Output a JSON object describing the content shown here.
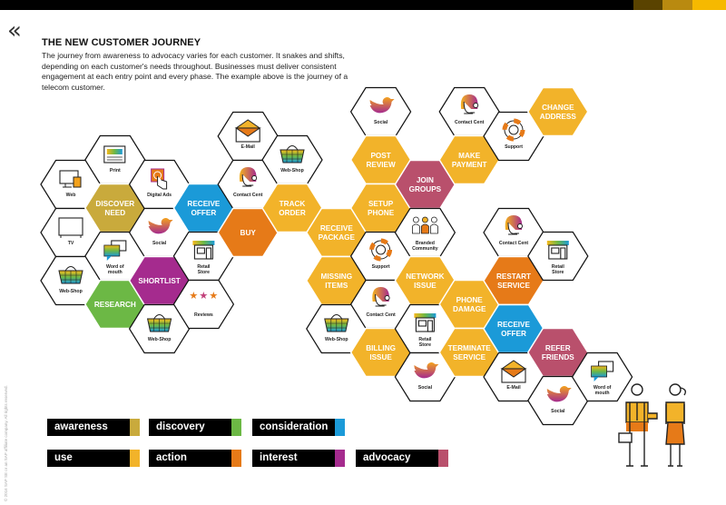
{
  "header": {
    "back_icon": "double-chevron-left-icon",
    "title": "THE NEW CUSTOMER JOURNEY",
    "description": "The journey from awareness to advocacy varies for each customer. It snakes and shifts, depending on each customer's needs throughout. Businesses must deliver consistent engagement at each entry point and every phase. The example above is the journey of a telecom customer.",
    "bar_colors": [
      "#000000",
      "#5a4300",
      "#b98a10",
      "#f6b900"
    ]
  },
  "copyright": "© 2016 SAP SE or an SAP affiliate company. All rights reserved.",
  "phases": {
    "awareness": {
      "label": "awareness",
      "color": "#c9aa3c"
    },
    "discovery": {
      "label": "discovery",
      "color": "#6cb845"
    },
    "consideration": {
      "label": "consideration",
      "color": "#1b9ad8"
    },
    "use": {
      "label": "use",
      "color": "#f2b32a"
    },
    "action": {
      "label": "action",
      "color": "#e67a18"
    },
    "interest": {
      "label": "interest",
      "color": "#a52b8e"
    },
    "advocacy": {
      "label": "advocacy",
      "color": "#b9506c"
    }
  },
  "legend": [
    "awareness",
    "discovery",
    "consideration",
    "use",
    "action",
    "interest",
    "advocacy"
  ],
  "hexes": [
    {
      "label": "Web",
      "icon": "web"
    },
    {
      "label": "TV",
      "icon": "tv"
    },
    {
      "label": "Web-Shop",
      "icon": "web-shop"
    },
    {
      "label": "Print",
      "icon": "print"
    },
    {
      "label": "DISCOVER\nNEED",
      "phase": "awareness"
    },
    {
      "label": "Word of\nmouth",
      "icon": "word-of-mouth"
    },
    {
      "label": "RESEARCH",
      "phase": "discovery"
    },
    {
      "label": "Digital Ads",
      "icon": "digital-ads"
    },
    {
      "label": "Social",
      "icon": "social"
    },
    {
      "label": "SHORTLIST",
      "phase": "interest"
    },
    {
      "label": "Web-Shop",
      "icon": "web-shop"
    },
    {
      "label": "RECEIVE\nOFFER",
      "phase": "consideration"
    },
    {
      "label": "Retail\nStore",
      "icon": "retail-store"
    },
    {
      "label": "Reviews",
      "icon": "reviews"
    },
    {
      "label": "E-Mail",
      "icon": "email"
    },
    {
      "label": "Contact Cent",
      "icon": "contact-center"
    },
    {
      "label": "BUY",
      "phase": "action"
    },
    {
      "label": "Web-Shop",
      "icon": "web-shop"
    },
    {
      "label": "TRACK\nORDER",
      "phase": "use"
    },
    {
      "label": "RECEIVE\nPACKAGE",
      "phase": "use"
    },
    {
      "label": "MISSING\nITEMS",
      "phase": "use"
    },
    {
      "label": "Web-Shop",
      "icon": "web-shop"
    },
    {
      "label": "Social",
      "icon": "social"
    },
    {
      "label": "POST\nREVIEW",
      "phase": "use"
    },
    {
      "label": "SETUP\nPHONE",
      "phase": "use"
    },
    {
      "label": "Support",
      "icon": "support"
    },
    {
      "label": "Contact Cent",
      "icon": "contact-center"
    },
    {
      "label": "BILLING\nISSUE",
      "phase": "use"
    },
    {
      "label": "JOIN\nGROUPS",
      "phase": "advocacy"
    },
    {
      "label": "Branded\nCommunity",
      "icon": "branded-community"
    },
    {
      "label": "NETWORK\nISSUE",
      "phase": "use"
    },
    {
      "label": "Retail\nStore",
      "icon": "retail-store"
    },
    {
      "label": "Social",
      "icon": "social"
    },
    {
      "label": "Contact Cent",
      "icon": "contact-center"
    },
    {
      "label": "MAKE\nPAYMENT",
      "phase": "use"
    },
    {
      "label": "PHONE\nDAMAGE",
      "phase": "use"
    },
    {
      "label": "TERMINATE\nSERVICE",
      "phase": "use"
    },
    {
      "label": "Support",
      "icon": "support"
    },
    {
      "label": "Contact Cent",
      "icon": "contact-center"
    },
    {
      "label": "RESTART\nSERVICE",
      "phase": "action"
    },
    {
      "label": "RECEIVE\nOFFER",
      "phase": "consideration"
    },
    {
      "label": "E-Mail",
      "icon": "email"
    },
    {
      "label": "CHANGE\nADDRESS",
      "phase": "use"
    },
    {
      "label": "Retail\nStore",
      "icon": "retail-store"
    },
    {
      "label": "REFER\nFRIENDS",
      "phase": "advocacy"
    },
    {
      "label": "Social",
      "icon": "social"
    },
    {
      "label": "Word of\nmouth",
      "icon": "word-of-mouth"
    }
  ],
  "illustration": "business-people-handshake"
}
